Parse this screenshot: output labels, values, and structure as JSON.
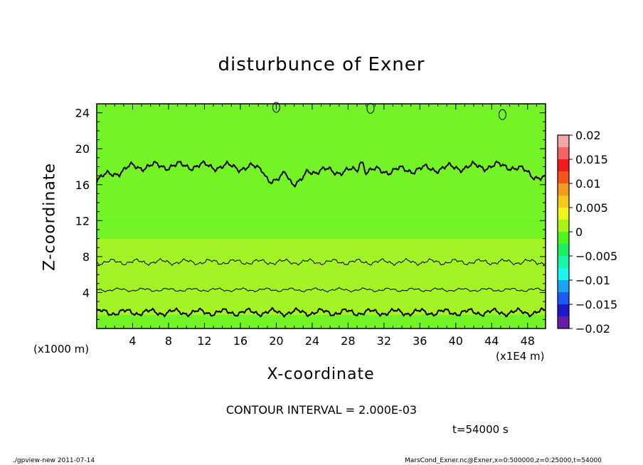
{
  "chart_data": {
    "type": "heatmap",
    "title": "disturbunce of Exner",
    "xlabel": "X-coordinate",
    "ylabel": "Z-coordinate",
    "x_units": "(x1000 m)",
    "x_units_secondary": "(x1E4 m)",
    "xlim": [
      0,
      500
    ],
    "ylim": [
      0,
      25
    ],
    "x_ticks": [
      40,
      80,
      120,
      160,
      200,
      240,
      280,
      320,
      360,
      400,
      440,
      480
    ],
    "x_tick_labels": [
      "4",
      "8",
      "12",
      "16",
      "20",
      "24",
      "28",
      "32",
      "36",
      "40",
      "44",
      "48"
    ],
    "y_ticks": [
      4,
      8,
      12,
      16,
      20,
      24
    ],
    "y_tick_labels": [
      "4",
      "8",
      "12",
      "16",
      "20",
      "24"
    ],
    "colorbar": {
      "min": -0.02,
      "max": 0.02,
      "tick_values": [
        0.02,
        0.015,
        0.01,
        0.005,
        0,
        -0.005,
        -0.01,
        -0.015,
        -0.02
      ],
      "tick_labels": [
        "0.02",
        "0.015",
        "0.01",
        "0.005",
        "0",
        "−0.005",
        "−0.01",
        "−0.015",
        "−0.02"
      ],
      "colors": [
        "#6a1aa8",
        "#1a1acc",
        "#1a5cf5",
        "#1aa6f5",
        "#1af5f0",
        "#1af5a6",
        "#18f060",
        "#4cf51a",
        "#a6f51a",
        "#f0f51a",
        "#f5c81a",
        "#f59a1a",
        "#f5551a",
        "#f51a1a",
        "#f56464",
        "#f5a6a6"
      ]
    },
    "value_bands": [
      {
        "z_range": [
          0,
          1.5
        ],
        "value": 0.001
      },
      {
        "z_range": [
          1.5,
          4.5
        ],
        "value": 0.003
      },
      {
        "z_range": [
          4.5,
          8
        ],
        "value": 0.0045
      },
      {
        "z_range": [
          8,
          10
        ],
        "value": 0.0025
      },
      {
        "z_range": [
          10,
          12
        ],
        "value": 0.0012
      },
      {
        "z_range": [
          12,
          25
        ],
        "value": 0.0
      }
    ],
    "contours": [
      {
        "name": "c1",
        "base_z": 1.8,
        "amplitude": 0.5,
        "bold": true
      },
      {
        "name": "c2",
        "base_z": 4.3,
        "amplitude": 0.25,
        "bold": false
      },
      {
        "name": "c3",
        "base_z": 7.4,
        "amplitude": 0.4,
        "bold": false
      },
      {
        "name": "c4",
        "base_z": 17.8,
        "amplitude": 0.6,
        "bold": true
      }
    ],
    "contour_interval": "CONTOUR INTERVAL = 2.000E-03",
    "time": "t=54000 s"
  },
  "footer": {
    "left": "./gpview-new   2011-07-14",
    "right": "MarsCond_Exner.nc@Exner,x=0:500000,z=0:25000,t=54000"
  },
  "colors": {
    "background": "#ffffff",
    "axis": "#000000",
    "field_base": "#18f040"
  }
}
